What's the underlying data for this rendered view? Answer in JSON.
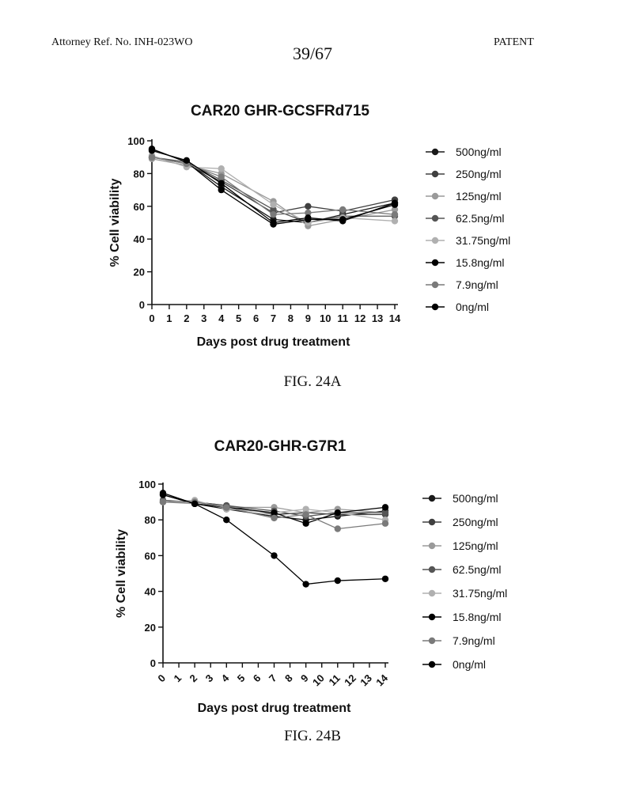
{
  "header": {
    "left": "Attorney Ref. No. INH-023WO",
    "center": "39/67",
    "right": "PATENT"
  },
  "captions": [
    "FIG. 24A",
    "FIG. 24B"
  ],
  "chart_data": [
    {
      "type": "line",
      "title": "CAR20 GHR-GCSFRd715",
      "xlabel": "Days post drug treatment",
      "ylabel": "% Cell viability",
      "xlim": [
        0,
        14
      ],
      "ylim": [
        0,
        100
      ],
      "xticks": [
        0,
        1,
        2,
        3,
        4,
        5,
        6,
        7,
        8,
        9,
        10,
        11,
        12,
        13,
        14
      ],
      "yticks": [
        0,
        20,
        40,
        60,
        80,
        100
      ],
      "legend": "right",
      "x": [
        0,
        2,
        4,
        7,
        9,
        11,
        14
      ],
      "series": [
        {
          "name": "500ng/ml",
          "color": "#1a1a1a",
          "values": [
            95,
            87,
            72,
            52,
            50,
            55,
            62
          ]
        },
        {
          "name": "250ng/ml",
          "color": "#404040",
          "values": [
            90,
            86,
            75,
            56,
            60,
            57,
            64
          ]
        },
        {
          "name": "125ng/ml",
          "color": "#9a9a9a",
          "values": [
            89,
            85,
            80,
            63,
            48,
            52,
            58
          ]
        },
        {
          "name": "62.5ng/ml",
          "color": "#555555",
          "values": [
            90,
            87,
            76,
            58,
            50,
            54,
            54
          ]
        },
        {
          "name": "31.75ng/ml",
          "color": "#b0b0b0",
          "values": [
            91,
            84,
            83,
            61,
            50,
            53,
            51
          ]
        },
        {
          "name": "15.8ng/ml",
          "color": "#000000",
          "values": [
            95,
            87,
            70,
            49,
            52,
            52,
            61
          ]
        },
        {
          "name": "7.9ng/ml",
          "color": "#7a7a7a",
          "values": [
            90,
            86,
            78,
            55,
            56,
            58,
            55
          ]
        },
        {
          "name": "0ng/ml",
          "color": "#000000",
          "values": [
            94,
            88,
            74,
            50,
            53,
            51,
            62
          ]
        }
      ]
    },
    {
      "type": "line",
      "title": "CAR20-GHR-G7R1",
      "xlabel": "Days post drug treatment",
      "ylabel": "% Cell viability",
      "xlim": [
        0,
        14
      ],
      "ylim": [
        0,
        100
      ],
      "xticks": [
        0,
        1,
        2,
        3,
        4,
        5,
        6,
        7,
        8,
        9,
        10,
        11,
        12,
        13,
        14
      ],
      "yticks": [
        0,
        20,
        40,
        60,
        80,
        100
      ],
      "legend": "right",
      "x": [
        0,
        2,
        4,
        7,
        9,
        11,
        14
      ],
      "series": [
        {
          "name": "500ng/ml",
          "color": "#1a1a1a",
          "values": [
            94,
            89,
            86,
            82,
            80,
            82,
            85
          ]
        },
        {
          "name": "250ng/ml",
          "color": "#404040",
          "values": [
            90,
            90,
            88,
            83,
            84,
            83,
            83
          ]
        },
        {
          "name": "125ng/ml",
          "color": "#9a9a9a",
          "values": [
            90,
            89,
            87,
            87,
            84,
            86,
            84
          ]
        },
        {
          "name": "62.5ng/ml",
          "color": "#555555",
          "values": [
            91,
            90,
            88,
            85,
            82,
            84,
            84
          ]
        },
        {
          "name": "31.75ng/ml",
          "color": "#b0b0b0",
          "values": [
            90,
            91,
            86,
            84,
            86,
            84,
            80
          ]
        },
        {
          "name": "15.8ng/ml",
          "color": "#000000",
          "values": [
            94,
            89,
            87,
            84,
            78,
            84,
            87
          ]
        },
        {
          "name": "7.9ng/ml",
          "color": "#7a7a7a",
          "values": [
            90,
            90,
            87,
            81,
            83,
            75,
            78
          ]
        },
        {
          "name": "0ng/ml",
          "color": "#000000",
          "values": [
            95,
            89,
            80,
            60,
            44,
            46,
            47
          ]
        }
      ]
    }
  ]
}
